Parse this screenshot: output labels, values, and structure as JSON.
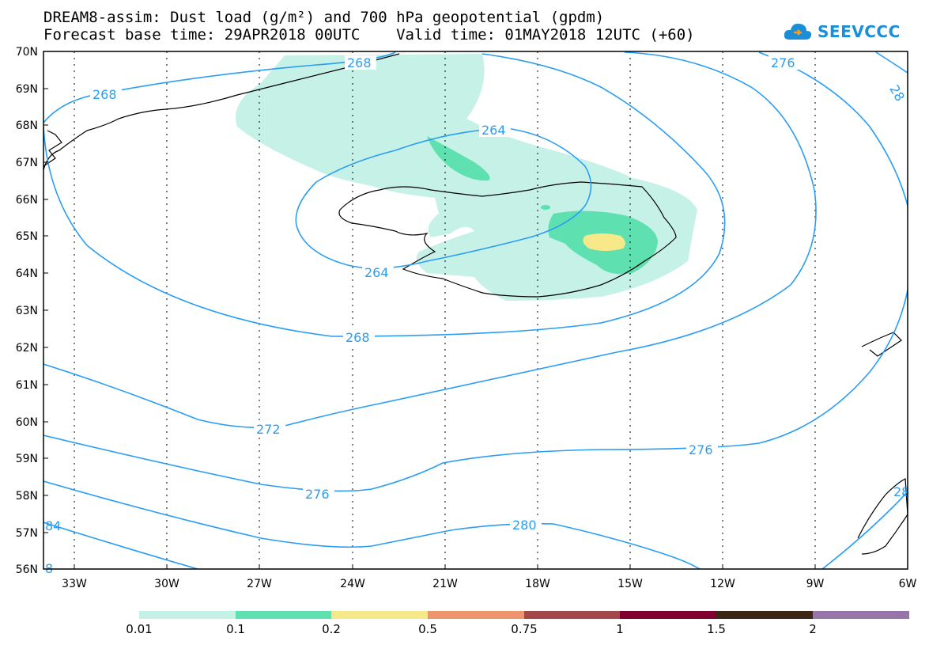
{
  "title_line1": "DREAM8-assim: Dust load (g/m²) and 700 hPa geopotential (gpdm)",
  "title_line2": "Forecast base time: 29APR2018 00UTC    Valid time: 01MAY2018 12UTC (+60)",
  "logo_text": "SEEVCCC",
  "lat_labels": [
    "70N",
    "69N",
    "68N",
    "67N",
    "66N",
    "65N",
    "64N",
    "63N",
    "62N",
    "61N",
    "60N",
    "59N",
    "58N",
    "57N",
    "56N"
  ],
  "lon_labels": [
    "33W",
    "30W",
    "27W",
    "24W",
    "21W",
    "18W",
    "15W",
    "12W",
    "9W",
    "6W"
  ],
  "contour_labels": [
    "268",
    "268",
    "264",
    "276",
    "264",
    "268",
    "272",
    "276",
    "276",
    "280",
    "84",
    "28",
    "28",
    "8"
  ],
  "colorbar": {
    "colors": [
      "#c6f1e7",
      "#5ee0b0",
      "#f7e98a",
      "#ee9570",
      "#a4494a",
      "#800030",
      "#3c2614",
      "#9775a8"
    ],
    "labels": [
      "0.01",
      "0.1",
      "0.2",
      "0.5",
      "0.75",
      "1",
      "1.5",
      "2"
    ]
  },
  "colors": {
    "contour": "#2a9df4",
    "dust_low": "#c6f1e7",
    "dust_mid": "#5ee0b0",
    "dust_high": "#f7e98a"
  }
}
